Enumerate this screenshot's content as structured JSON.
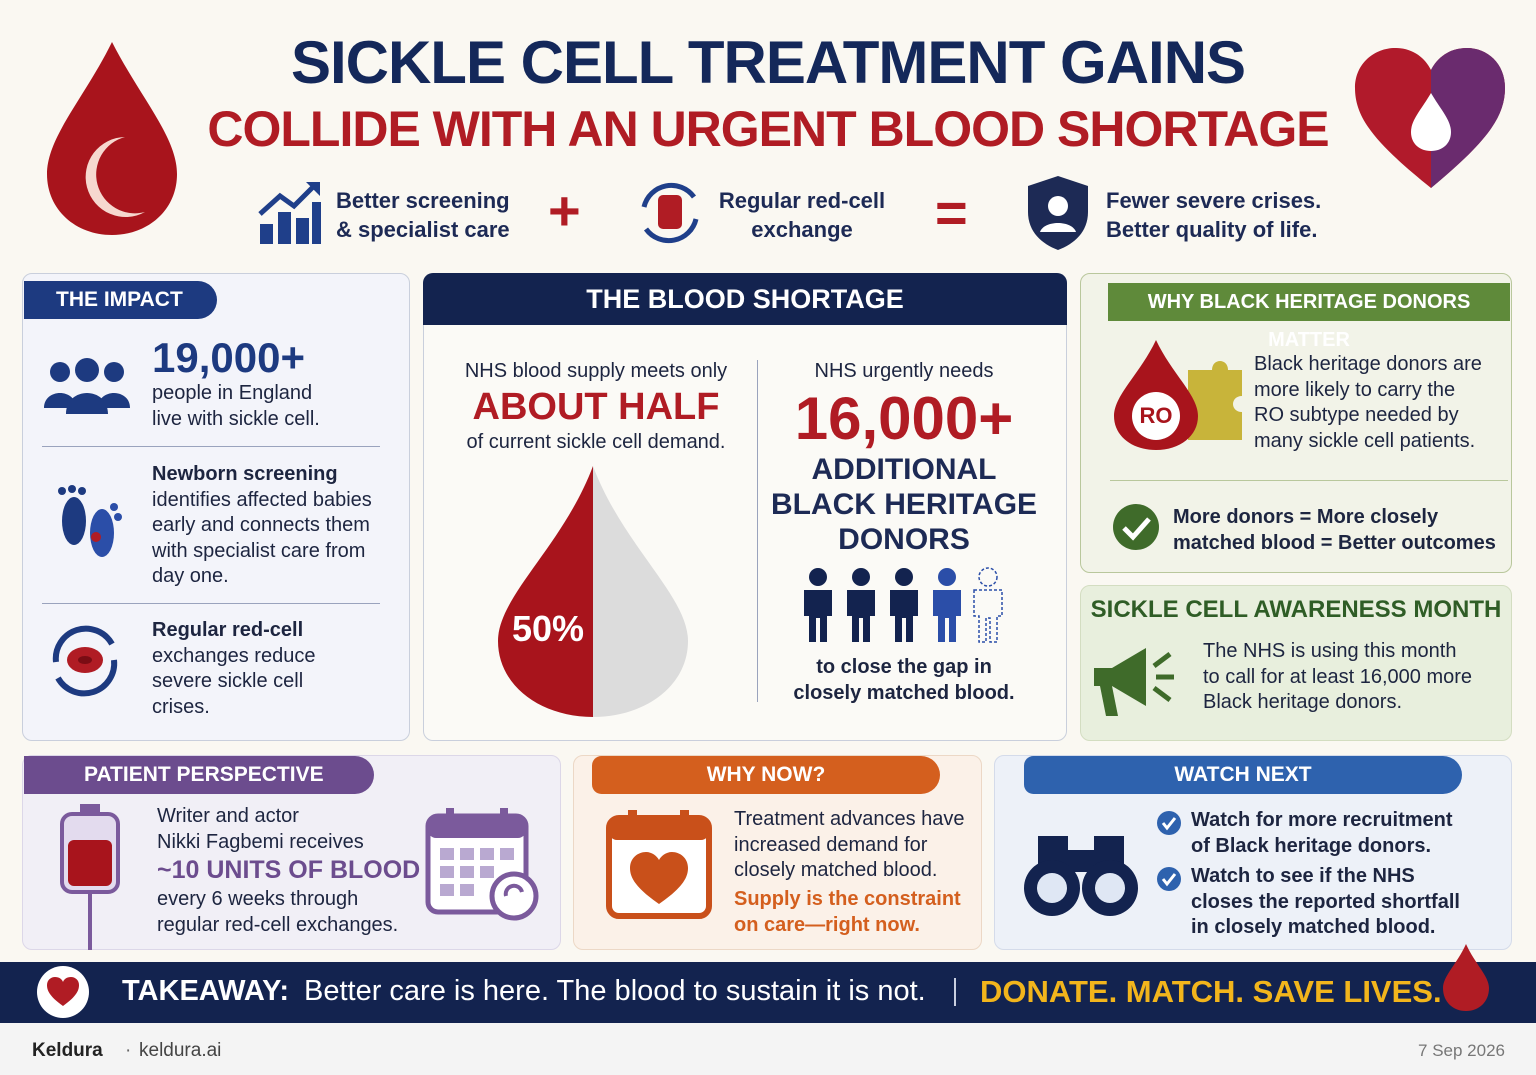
{
  "header": {
    "title_line1": "SICKLE CELL TREATMENT GAINS",
    "title_line2": "COLLIDE WITH AN URGENT BLOOD SHORTAGE"
  },
  "formula": {
    "item1": [
      "Better screening",
      "& specialist care"
    ],
    "plus": "+",
    "item2": [
      "Regular red-cell",
      "exchange"
    ],
    "equals": "=",
    "item3": [
      "Fewer severe crises.",
      "Better quality of life."
    ]
  },
  "impact": {
    "label": "THE IMPACT",
    "stat": "19,000+",
    "stat_text": [
      "people in England",
      "live with sickle cell."
    ],
    "screening": [
      "Newborn screening",
      "identifies affected babies",
      "early and connects them",
      "with specialist care from",
      "day one."
    ],
    "exchange": [
      "Regular red-cell",
      "exchanges reduce",
      "severe sickle cell",
      "crises."
    ]
  },
  "shortage": {
    "label": "THE BLOOD SHORTAGE",
    "left_intro": "NHS blood supply meets only",
    "left_highlight": "ABOUT HALF",
    "left_after": "of current sickle cell demand.",
    "percent": "50%",
    "right_intro": "NHS urgently needs",
    "right_number": "16,000+",
    "right_lines": [
      "ADDITIONAL",
      "BLACK HERITAGE",
      "DONORS"
    ],
    "right_closing": [
      "to close the gap in",
      "closely matched blood."
    ]
  },
  "why_black": {
    "label": "WHY BLACK HERITAGE DONORS MATTER",
    "badge": "RO",
    "text": [
      "Black heritage donors are",
      "more likely to carry the",
      "RO subtype needed by",
      "many sickle cell patients."
    ],
    "outcome": [
      "More donors = More closely",
      "matched blood = Better outcomes"
    ]
  },
  "awareness": {
    "title": "SICKLE CELL AWARENESS MONTH",
    "text": [
      "The NHS is using this month",
      "to call for at least 16,000 more",
      "Black heritage donors."
    ]
  },
  "patient": {
    "label": "PATIENT PERSPECTIVE",
    "before": [
      "Writer and actor",
      "Nikki Fagbemi receives"
    ],
    "highlight": "~10 UNITS OF BLOOD",
    "after": [
      "every 6 weeks through",
      "regular red-cell exchanges."
    ]
  },
  "why_now": {
    "label": "WHY NOW?",
    "text": [
      "Treatment advances have",
      "increased demand for",
      "closely matched blood."
    ],
    "emphasis": [
      "Supply is the constraint",
      "on care—right now."
    ]
  },
  "watch_next": {
    "label": "WATCH NEXT",
    "item1": [
      "Watch for more recruitment",
      "of Black heritage donors."
    ],
    "item2": [
      "Watch to see if the NHS",
      "closes the reported shortfall",
      "in closely matched blood."
    ]
  },
  "takeaway": {
    "label": "TAKEAWAY:",
    "text": "Better care is here. The blood to sustain it is not.",
    "cta": "DONATE. MATCH. SAVE LIVES."
  },
  "footer": {
    "brand": "Keldura",
    "separator": "·",
    "site": "keldura.ai",
    "date": "7 Sep 2026"
  }
}
